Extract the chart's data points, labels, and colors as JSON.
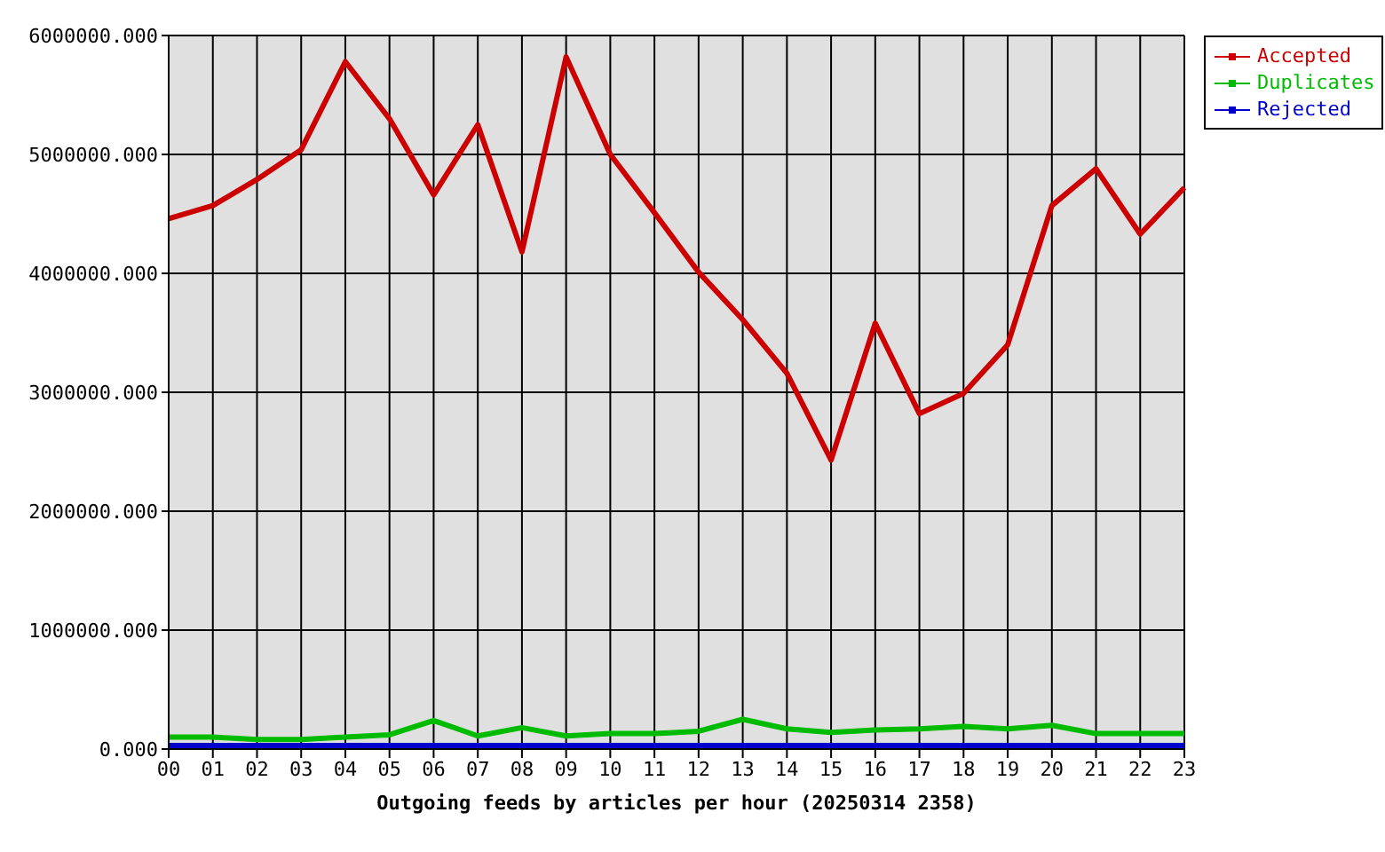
{
  "chart_data": {
    "type": "line",
    "xlabel": "Outgoing feeds by articles per hour (20250314 2358)",
    "categories": [
      "00",
      "01",
      "02",
      "03",
      "04",
      "05",
      "06",
      "07",
      "08",
      "09",
      "10",
      "11",
      "12",
      "13",
      "14",
      "15",
      "16",
      "17",
      "18",
      "19",
      "20",
      "21",
      "22",
      "23"
    ],
    "series": [
      {
        "name": "Accepted",
        "color": "#cc0000",
        "values": [
          4460000,
          4570000,
          4790000,
          5040000,
          5780000,
          5300000,
          4660000,
          5250000,
          4180000,
          5820000,
          5000000,
          4510000,
          4010000,
          3610000,
          3160000,
          2430000,
          3580000,
          2820000,
          2990000,
          3400000,
          4570000,
          4880000,
          4330000,
          4720000
        ]
      },
      {
        "name": "Duplicates",
        "color": "#00bb00",
        "values": [
          100000,
          100000,
          80000,
          80000,
          100000,
          120000,
          240000,
          110000,
          180000,
          110000,
          130000,
          130000,
          150000,
          250000,
          170000,
          140000,
          160000,
          170000,
          190000,
          170000,
          200000,
          130000,
          130000,
          130000
        ]
      },
      {
        "name": "Rejected",
        "color": "#0000cc",
        "values": [
          30000,
          30000,
          30000,
          30000,
          30000,
          30000,
          30000,
          30000,
          30000,
          30000,
          30000,
          30000,
          30000,
          30000,
          30000,
          30000,
          30000,
          30000,
          30000,
          30000,
          30000,
          30000,
          30000,
          30000
        ]
      }
    ],
    "ylim": [
      0,
      6000000
    ],
    "yticks": [
      {
        "value": 0,
        "label": "0.000"
      },
      {
        "value": 1000000,
        "label": "1000000.000"
      },
      {
        "value": 2000000,
        "label": "2000000.000"
      },
      {
        "value": 3000000,
        "label": "3000000.000"
      },
      {
        "value": 4000000,
        "label": "4000000.000"
      },
      {
        "value": 5000000,
        "label": "5000000.000"
      },
      {
        "value": 6000000,
        "label": "6000000.000"
      }
    ],
    "grid": true,
    "legend": "top right",
    "line_style": "solid"
  }
}
